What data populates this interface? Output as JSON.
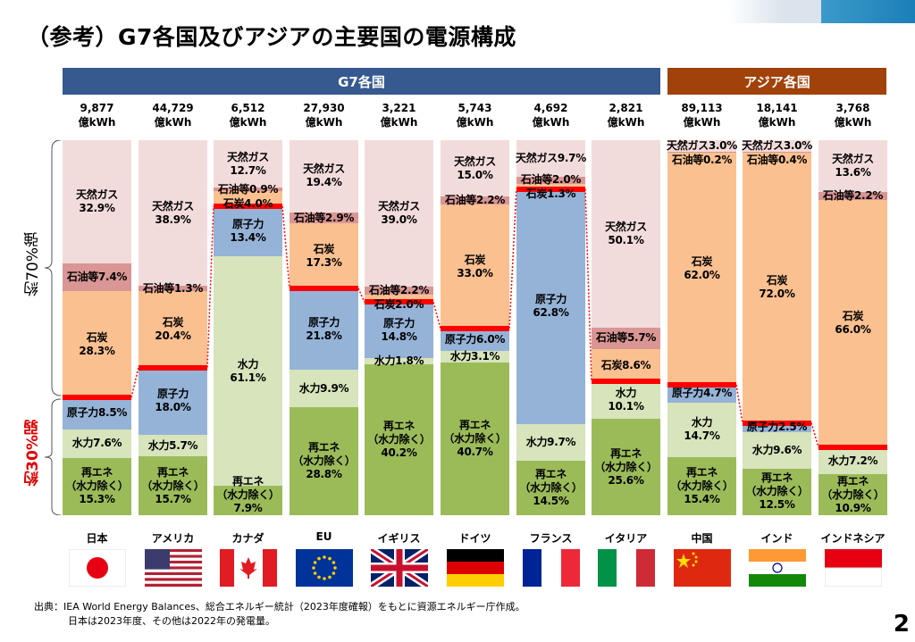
{
  "title": "（参考）G7各国及びアジアの主要国の電源構成",
  "groups": {
    "g7": "G7各国",
    "asia": "アジア各国"
  },
  "colors": {
    "天然ガス": "#f2dcdb",
    "石油等": "#d99694",
    "石炭": "#fac090",
    "原子力": "#95b3d7",
    "水力": "#d7e4bc",
    "再エネ": "#9bbb59",
    "g7": "#36598f",
    "asia": "#a0420a",
    "divider": "#ff0000"
  },
  "brackets": {
    "upper": "約70%強",
    "lower": "約30%弱"
  },
  "source": {
    "line1": "出典：IEA World Energy Balances、総合エネルギー統計（2023年度確報）をもとに資源エネルギー庁作成。",
    "line2": "日本は2023年度、その他は2022年の発電量。"
  },
  "page_number": "2",
  "chart_data": {
    "type": "bar",
    "stacked": true,
    "unit": "%",
    "ylim": [
      0,
      100
    ],
    "stack_order": [
      "再エネ",
      "水力",
      "原子力",
      "石炭",
      "石油等",
      "天然ガス"
    ],
    "segment_labels": {
      "再エネ": "再エネ\n（水力除く）",
      "水力": "水力",
      "原子力": "原子力",
      "石炭": "石炭",
      "石油等": "石油等",
      "天然ガス": "天然ガス"
    },
    "total_unit": "億kWh",
    "countries": [
      {
        "name": "日本",
        "group": "g7",
        "flag": "jp",
        "total": "9,877",
        "values": {
          "再エネ": 15.3,
          "水力": 7.6,
          "原子力": 8.5,
          "石炭": 28.3,
          "石油等": 7.4,
          "天然ガス": 32.9
        }
      },
      {
        "name": "アメリカ",
        "group": "g7",
        "flag": "us",
        "total": "44,729",
        "values": {
          "再エネ": 15.7,
          "水力": 5.7,
          "原子力": 18.0,
          "石炭": 20.4,
          "石油等": 1.3,
          "天然ガス": 38.9
        }
      },
      {
        "name": "カナダ",
        "group": "g7",
        "flag": "ca",
        "total": "6,512",
        "values": {
          "再エネ": 7.9,
          "水力": 61.1,
          "原子力": 13.4,
          "石炭": 4.0,
          "石油等": 0.9,
          "天然ガス": 12.7
        }
      },
      {
        "name": "EU",
        "group": "g7",
        "flag": "eu",
        "total": "27,930",
        "values": {
          "再エネ": 28.8,
          "水力": 9.9,
          "原子力": 21.8,
          "石炭": 17.3,
          "石油等": 2.9,
          "天然ガス": 19.4
        }
      },
      {
        "name": "イギリス",
        "group": "g7",
        "flag": "gb",
        "total": "3,221",
        "values": {
          "再エネ": 40.2,
          "水力": 1.8,
          "原子力": 14.8,
          "石炭": 2.0,
          "石油等": 2.2,
          "天然ガス": 39.0
        }
      },
      {
        "name": "ドイツ",
        "group": "g7",
        "flag": "de",
        "total": "5,743",
        "values": {
          "再エネ": 40.7,
          "水力": 3.1,
          "原子力": 6.0,
          "石炭": 33.0,
          "石油等": 2.2,
          "天然ガス": 15.0
        }
      },
      {
        "name": "フランス",
        "group": "g7",
        "flag": "fr",
        "total": "4,692",
        "values": {
          "再エネ": 14.5,
          "水力": 9.7,
          "原子力": 62.8,
          "石炭": 1.3,
          "石油等": 2.0,
          "天然ガス": 9.7
        }
      },
      {
        "name": "イタリア",
        "group": "g7",
        "flag": "it",
        "total": "2,821",
        "values": {
          "再エネ": 25.6,
          "水力": 10.1,
          "石炭": 8.6,
          "石油等": 5.7,
          "天然ガス": 50.1
        }
      },
      {
        "name": "中国",
        "group": "asia",
        "flag": "cn",
        "total": "89,113",
        "values": {
          "再エネ": 15.4,
          "水力": 14.7,
          "原子力": 4.7,
          "石炭": 62.0,
          "石油等": 0.2,
          "天然ガス": 3.0
        }
      },
      {
        "name": "インド",
        "group": "asia",
        "flag": "in",
        "total": "18,141",
        "values": {
          "再エネ": 12.5,
          "水力": 9.6,
          "原子力": 2.5,
          "石炭": 72.0,
          "石油等": 0.4,
          "天然ガス": 3.0
        }
      },
      {
        "name": "インドネシア",
        "group": "asia",
        "flag": "id",
        "total": "3,768",
        "values": {
          "再エネ": 10.9,
          "水力": 7.2,
          "石炭": 66.0,
          "石油等": 2.2,
          "天然ガス": 13.6
        }
      }
    ]
  }
}
